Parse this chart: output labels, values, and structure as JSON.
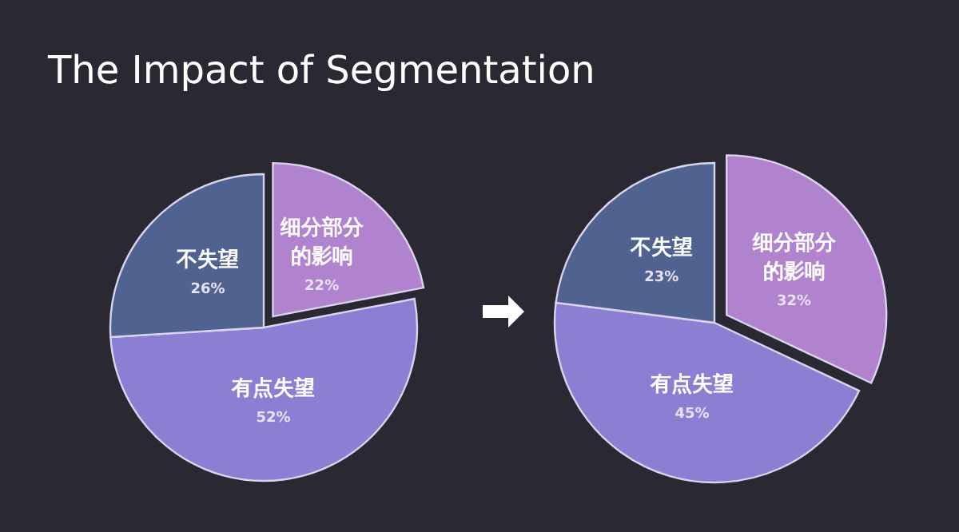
{
  "chart_data": [
    {
      "type": "pie",
      "title": "The Impact of Segmentation",
      "categories": [
        "细分部分的影响",
        "有点失望",
        "不失望"
      ],
      "values": [
        22,
        52,
        26
      ],
      "value_labels": [
        "22%",
        "52%",
        "26%"
      ],
      "colors": [
        "#b183cf",
        "#8a7fd3",
        "#4f6290"
      ]
    },
    {
      "type": "pie",
      "categories": [
        "细分部分的影响",
        "有点失望",
        "不失望"
      ],
      "values": [
        32,
        45,
        23
      ],
      "value_labels": [
        "32%",
        "45%",
        "23%"
      ],
      "colors": [
        "#b183cf",
        "#8a7fd3",
        "#4f6290"
      ]
    }
  ]
}
